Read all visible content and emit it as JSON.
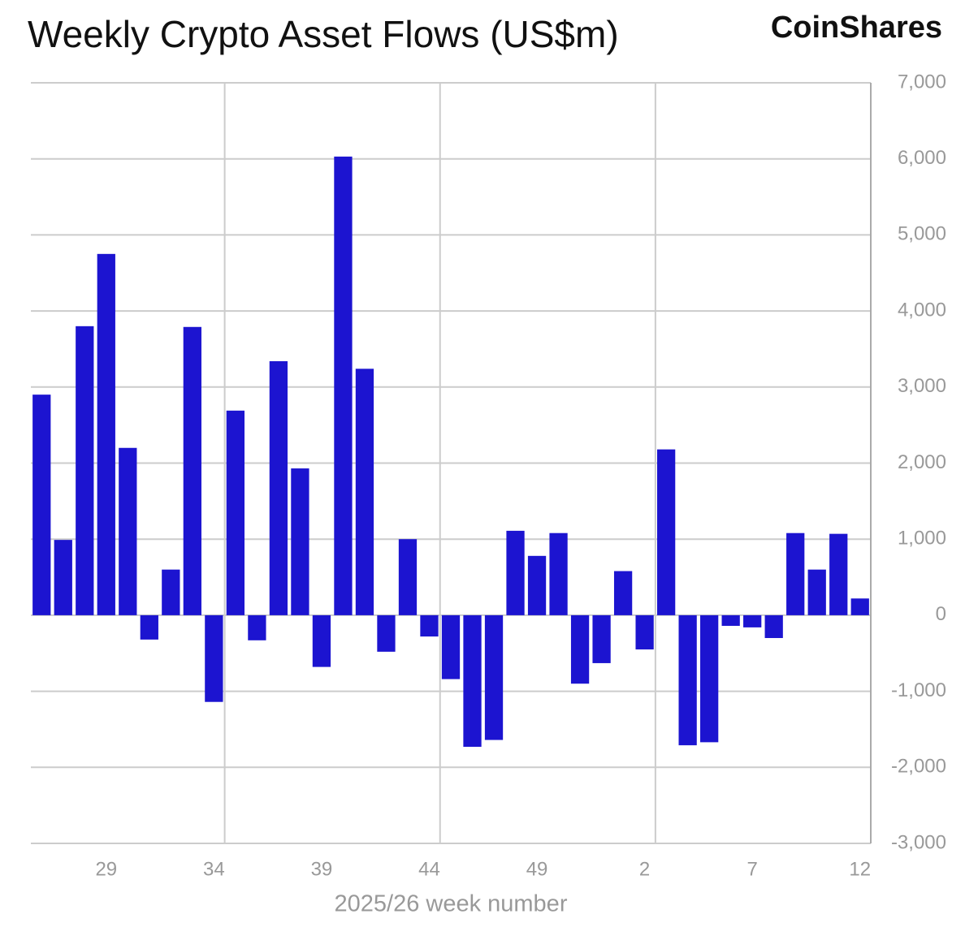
{
  "chart_data": {
    "type": "bar",
    "title": "Weekly Crypto Asset Flows (US$m)",
    "brand": "CoinShares",
    "x_label": "2025/26 week number",
    "categories": [
      null,
      null,
      null,
      "29",
      null,
      null,
      null,
      null,
      "34",
      null,
      null,
      null,
      null,
      "39",
      null,
      null,
      null,
      null,
      "44",
      null,
      null,
      null,
      null,
      "49",
      null,
      null,
      null,
      null,
      "2",
      null,
      null,
      null,
      null,
      "7",
      null,
      null,
      null,
      null,
      "12"
    ],
    "values": [
      2900,
      990,
      3800,
      4750,
      2200,
      -320,
      600,
      3790,
      -1140,
      2690,
      -330,
      3340,
      1930,
      -680,
      6030,
      3240,
      -480,
      1000,
      -280,
      -840,
      -1730,
      -1640,
      1110,
      780,
      1080,
      -900,
      -630,
      580,
      -450,
      2180,
      -1710,
      -1670,
      -140,
      -160,
      -300,
      1080,
      600,
      1070,
      220
    ],
    "color": "#1c14d0",
    "ylim": [
      -3000,
      7000
    ],
    "yticks": [
      {
        "value": -3000,
        "label": "-3,000"
      },
      {
        "value": -2000,
        "label": "-2,000"
      },
      {
        "value": -1000,
        "label": "-1,000"
      },
      0,
      {
        "value": 1000,
        "label": "1,000"
      },
      {
        "value": 2000,
        "label": "2,000"
      },
      {
        "value": 3000,
        "label": "3,000"
      },
      {
        "value": 4000,
        "label": "4,000"
      },
      {
        "value": 5000,
        "label": "5,000"
      },
      {
        "value": 6000,
        "label": "6,000"
      },
      {
        "value": 7000,
        "label": "7,000"
      }
    ],
    "grid": true
  }
}
